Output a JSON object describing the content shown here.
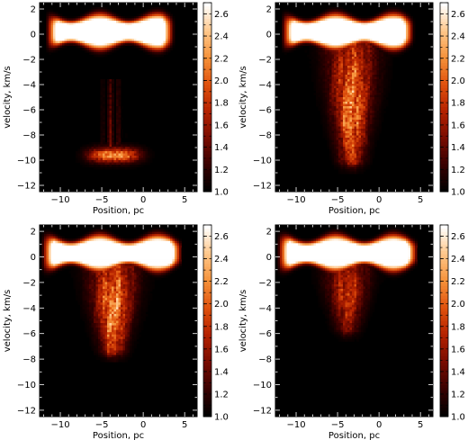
{
  "colormap": {
    "stops": [
      "#000000",
      "#3a0000",
      "#7a0c00",
      "#b52200",
      "#e0520e",
      "#f5923a",
      "#ffc78a",
      "#ffffff"
    ]
  },
  "chart_data": [
    {
      "type": "heatmap",
      "panel": "top-left",
      "xlabel": "Position, pc",
      "ylabel": "velocity, km/s",
      "xlim": [
        -12.5,
        6.5
      ],
      "ylim": [
        -12.5,
        2.5
      ],
      "xticks": [
        -10,
        -5,
        0,
        5
      ],
      "yticks": [
        -12,
        -10,
        -8,
        -6,
        -4,
        -2,
        0,
        2
      ],
      "colorbar": {
        "range": [
          1.0,
          2.7
        ],
        "ticks": [
          1.0,
          1.2,
          1.4,
          1.6,
          1.8,
          2.0,
          2.2,
          2.4,
          2.6
        ]
      },
      "features": [
        {
          "kind": "disk",
          "x_range": [
            -11,
            3
          ],
          "velocity": 0.2,
          "peak": 2.7
        },
        {
          "kind": "tail",
          "x_center": -3.8,
          "x_halfwidth": 1.0,
          "v_top": -3.5,
          "v_bottom": -9.0,
          "level": 1.4
        },
        {
          "kind": "clump",
          "x_range": [
            -6.5,
            -0.5
          ],
          "velocity": -9.6,
          "peak": 2.3
        }
      ]
    },
    {
      "type": "heatmap",
      "panel": "top-right",
      "xlabel": "Position, pc",
      "ylabel": "velocity, km/s",
      "xlim": [
        -12.5,
        6.5
      ],
      "ylim": [
        -12.5,
        2.5
      ],
      "xticks": [
        -10,
        -5,
        0,
        5
      ],
      "yticks": [
        -12,
        -10,
        -8,
        -6,
        -4,
        -2,
        0,
        2
      ],
      "colorbar": {
        "range": [
          1.0,
          2.7
        ],
        "ticks": [
          1.0,
          1.2,
          1.4,
          1.6,
          1.8,
          2.0,
          2.2,
          2.4,
          2.6
        ]
      },
      "features": [
        {
          "kind": "disk",
          "x_range": [
            -11,
            3.5
          ],
          "velocity": 0.2,
          "peak": 2.7
        },
        {
          "kind": "plume",
          "x_center": -3.3,
          "x_halfwidth": 2.9,
          "v_top": -0.5,
          "v_bottom": -10.2,
          "peak_velocity": -5.8,
          "peak": 2.35
        }
      ]
    },
    {
      "type": "heatmap",
      "panel": "bottom-left",
      "xlabel": "Position, pc",
      "ylabel": "velocity, km/s",
      "xlim": [
        -12.5,
        6.5
      ],
      "ylim": [
        -12.5,
        2.5
      ],
      "xticks": [
        -10,
        -5,
        0,
        5
      ],
      "yticks": [
        -12,
        -10,
        -8,
        -6,
        -4,
        -2,
        0,
        2
      ],
      "colorbar": {
        "range": [
          1.0,
          2.7
        ],
        "ticks": [
          1.0,
          1.2,
          1.4,
          1.6,
          1.8,
          2.0,
          2.2,
          2.4,
          2.6
        ]
      },
      "features": [
        {
          "kind": "disk",
          "x_range": [
            -11.5,
            4
          ],
          "velocity": 0.3,
          "peak": 2.7
        },
        {
          "kind": "plume",
          "x_center": -3.6,
          "x_halfwidth": 2.8,
          "v_top": -0.5,
          "v_bottom": -7.5,
          "peak_velocity": -4.2,
          "peak": 2.4
        }
      ]
    },
    {
      "type": "heatmap",
      "panel": "bottom-right",
      "xlabel": "Position, pc",
      "ylabel": "velocity, km/s",
      "xlim": [
        -12.5,
        6.5
      ],
      "ylim": [
        -12.5,
        2.5
      ],
      "xticks": [
        -10,
        -5,
        0,
        5
      ],
      "yticks": [
        -12,
        -10,
        -8,
        -6,
        -4,
        -2,
        0,
        2
      ],
      "colorbar": {
        "range": [
          1.0,
          2.7
        ],
        "ticks": [
          1.0,
          1.2,
          1.4,
          1.6,
          1.8,
          2.0,
          2.2,
          2.4,
          2.6
        ]
      },
      "features": [
        {
          "kind": "disk",
          "x_range": [
            -11.5,
            4
          ],
          "velocity": 0.3,
          "peak": 2.7
        },
        {
          "kind": "plume",
          "x_center": -3.8,
          "x_halfwidth": 2.6,
          "v_top": -0.5,
          "v_bottom": -5.8,
          "peak_velocity": -3.0,
          "peak": 1.95
        }
      ]
    }
  ]
}
